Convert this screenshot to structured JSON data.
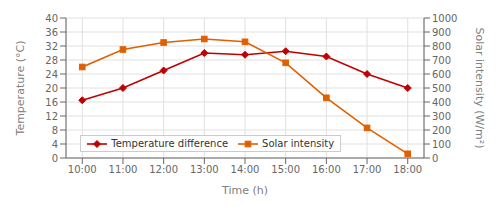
{
  "chart_data": {
    "type": "line",
    "xlabel": "Time (h)",
    "ylabel": "Temperature (°C)",
    "y2label": "Solar intensity (W/m²)",
    "x": [
      10,
      11,
      12,
      13,
      14,
      15,
      16,
      17,
      18
    ],
    "xlim": [
      9.6,
      18.4
    ],
    "xticks": [
      {
        "value": 10,
        "label": "10:00"
      },
      {
        "value": 11,
        "label": "11:00"
      },
      {
        "value": 12,
        "label": "12:00"
      },
      {
        "value": 13,
        "label": "13:00"
      },
      {
        "value": 14,
        "label": "14:00"
      },
      {
        "value": 15,
        "label": "15:00"
      },
      {
        "value": 16,
        "label": "16:00"
      },
      {
        "value": 17,
        "label": "17:00"
      },
      {
        "value": 18,
        "label": "18:00"
      }
    ],
    "ylim": [
      0,
      40
    ],
    "yticks": [
      0,
      4,
      8,
      12,
      16,
      20,
      24,
      28,
      32,
      36,
      40
    ],
    "y2lim": [
      0,
      1000
    ],
    "y2ticks": [
      0,
      100,
      200,
      300,
      400,
      500,
      600,
      700,
      800,
      900,
      1000
    ],
    "grid": true,
    "legend": "lower left",
    "series": [
      {
        "name": "Temperature difference",
        "color": "#c00000",
        "marker": "diamond",
        "values": [
          16.5,
          20.0,
          25.0,
          30.0,
          29.5,
          30.5,
          29.0,
          24.0,
          20.0
        ]
      },
      {
        "name": "Solar intensity",
        "color": "#e06000",
        "marker": "square",
        "axis": "y2",
        "values": [
          650,
          775,
          825,
          850,
          830,
          680,
          430,
          215,
          30
        ]
      }
    ]
  }
}
